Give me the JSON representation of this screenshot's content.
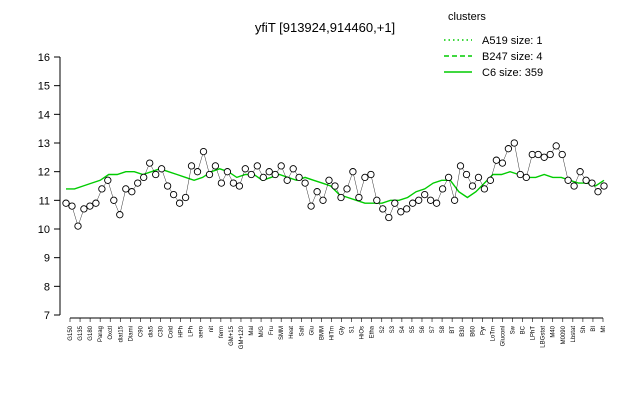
{
  "chart_data": {
    "type": "line",
    "title": "yfiT [913924,914460,+1]",
    "xlabel": "",
    "ylabel": "",
    "ylim": [
      7,
      16
    ],
    "yticks": [
      7,
      8,
      9,
      10,
      11,
      12,
      13,
      14,
      15,
      16
    ],
    "grid": false,
    "legend": {
      "title": "clusters",
      "placement": "top-right",
      "color": "#00cc00",
      "entries": [
        {
          "label": "A519 size: 1",
          "style": "dotted"
        },
        {
          "label": "B247 size: 4",
          "style": "dashed"
        },
        {
          "label": "C6 size: 359",
          "style": "solid"
        }
      ]
    },
    "x_tick_labels": [
      "G150",
      "G135",
      "G180",
      "Parag",
      "Oxctl",
      "diat15",
      "Diami",
      "C90",
      "dia5",
      "C30",
      "Cold",
      "HPh",
      "LPh",
      "aero",
      "nit",
      "ferm",
      "GM+15",
      "GM+120",
      "Mal",
      "M/G",
      "Fru",
      "SMM",
      "Heat",
      "Salt",
      "Glu",
      "BMM",
      "HiTm",
      "Gly",
      "S1",
      "HiOs",
      "Etha",
      "S2",
      "S3",
      "S4",
      "S5",
      "S6",
      "S7",
      "S8",
      "BT",
      "B30",
      "B60",
      "Pyr",
      "LoTm",
      "Gluconl",
      "Sw",
      "BC",
      "LPhT",
      "LBGstat",
      "M40",
      "M0090",
      "Lbstat",
      "Sh",
      "BI",
      "Mt"
    ],
    "series": [
      {
        "name": "",
        "color": "#00cc00",
        "values": [
          11.4,
          11.4,
          11.5,
          11.6,
          11.7,
          11.9,
          11.9,
          12.0,
          12.0,
          11.9,
          12.0,
          12.1,
          12.0,
          11.9,
          11.8,
          11.7,
          11.8,
          12.0,
          12.1,
          12.0,
          11.8,
          11.9,
          11.9,
          11.7,
          11.8,
          11.9,
          11.8,
          11.7,
          11.8,
          11.7,
          11.6,
          11.5,
          11.2,
          11.1,
          11.0,
          10.9,
          10.9,
          10.9,
          11.0,
          11.0,
          11.1,
          11.3,
          11.4,
          11.6,
          11.7,
          11.7,
          11.3,
          11.1,
          11.3,
          11.6,
          11.9,
          11.9,
          12.0,
          11.9,
          11.8,
          11.8,
          11.9,
          11.8,
          11.8,
          11.7,
          11.6,
          11.6,
          11.5,
          11.7
        ]
      }
    ],
    "points": [
      10.9,
      10.8,
      10.1,
      10.7,
      10.8,
      10.9,
      11.4,
      11.7,
      11.0,
      10.5,
      11.4,
      11.3,
      11.6,
      11.8,
      12.3,
      11.9,
      12.1,
      11.5,
      11.2,
      10.9,
      11.1,
      12.2,
      12.0,
      12.7,
      11.9,
      12.2,
      11.6,
      12.0,
      11.6,
      11.5,
      12.1,
      11.9,
      12.2,
      11.8,
      12.0,
      11.9,
      12.2,
      11.7,
      12.1,
      11.8,
      11.6,
      10.8,
      11.3,
      11.0,
      11.7,
      11.5,
      11.1,
      11.4,
      12.0,
      11.1,
      11.8,
      11.9,
      11.0,
      10.7,
      10.4,
      10.9,
      10.6,
      10.7,
      10.9,
      11.0,
      11.2,
      11.0,
      10.9,
      11.4,
      11.8,
      11.0,
      12.2,
      11.9,
      11.5,
      11.8,
      11.4,
      11.7,
      12.4,
      12.3,
      12.8,
      13.0,
      11.9,
      11.8,
      12.6,
      12.6,
      12.5,
      12.6,
      12.9,
      12.6,
      11.7,
      11.5,
      12.0,
      11.7,
      11.6,
      11.3,
      11.5
    ]
  }
}
